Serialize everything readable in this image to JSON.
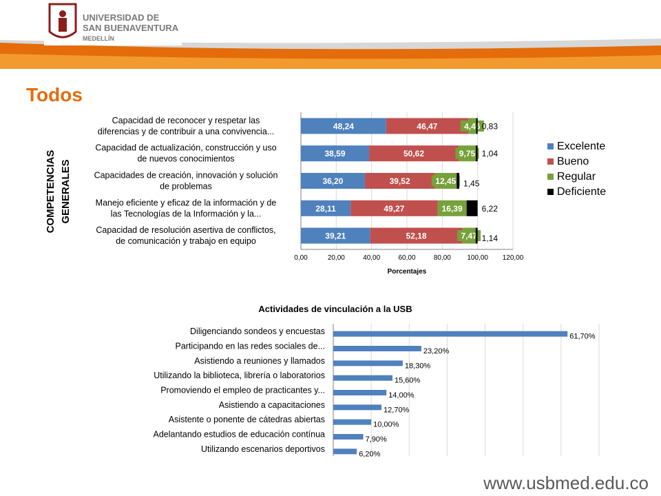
{
  "header": {
    "university_line1": "UNIVERSIDAD DE",
    "university_line2": "SAN BUENAVENTURA",
    "university_line3": "MEDELLÍN"
  },
  "page_title": "Todos",
  "footer": {
    "url": "www.usbmed.edu.co"
  },
  "colors": {
    "excelente": "#4f81bd",
    "bueno": "#c0504d",
    "regular": "#77a13a",
    "deficiente": "#000000",
    "bar2": "#4f81bd",
    "accent": "#e46c0a"
  },
  "chart_data": [
    {
      "type": "bar",
      "orientation": "horizontal",
      "stacked": true,
      "ylabel_lines": [
        "COMPETENCIAS",
        "GENERALES"
      ],
      "xlabel": "Porcentajes",
      "xlim": [
        0,
        120
      ],
      "xticks": [
        "0,00",
        "20,00",
        "40,00",
        "60,00",
        "80,00",
        "100,00",
        "120,00"
      ],
      "grid": true,
      "legend": "right",
      "categories": [
        [
          "Capacidad de reconocer y respetar las",
          "diferencias y de contribuir a una convivencia..."
        ],
        [
          "Capacidad de actualización, construcción y uso",
          "de nuevos    conocimientos"
        ],
        [
          "Capacidades de creación, innovación y solución",
          "de problemas"
        ],
        [
          "Manejo eficiente y eficaz de la información y de",
          "las Tecnologías de la Información y la..."
        ],
        [
          "Capacidad de resolución asertiva de conflictos,",
          "de comunicación y trabajo en equipo"
        ]
      ],
      "series": [
        {
          "name": "Excelente",
          "values": [
            48.24,
            38.59,
            36.2,
            28.11,
            39.21
          ],
          "labels": [
            "48,24",
            "38,59",
            "36,20",
            "28,11",
            "39,21"
          ]
        },
        {
          "name": "Bueno",
          "values": [
            46.47,
            50.62,
            39.52,
            49.27,
            52.18
          ],
          "labels": [
            "46,47",
            "50,62",
            "39,52",
            "49,27",
            "52,18"
          ]
        },
        {
          "name": "Regular",
          "values": [
            4.46,
            9.75,
            12.45,
            16.39,
            7.47
          ],
          "labels": [
            "4,46",
            "9,75",
            "12,45",
            "16,39",
            "7,47"
          ]
        },
        {
          "name": "Deficiente",
          "values": [
            0.83,
            1.04,
            1.45,
            6.22,
            1.14
          ],
          "labels": [
            "0,83",
            "1,04",
            "1,45",
            "6,22",
            "1,14"
          ]
        }
      ]
    },
    {
      "type": "bar",
      "orientation": "horizontal",
      "title": "Actividades de vinculación a la USB",
      "grid": true,
      "xlim": [
        0,
        70
      ],
      "categories": [
        "Diligenciando sondeos y encuestas",
        "Participando en las redes sociales de...",
        "Asistiendo a reuniones y llamados",
        "Utilizando la biblioteca, librería o laboratorios",
        "Promoviendo el empleo de practicantes y...",
        "Asistiendo a capacitaciones",
        "Asistente o ponente de cátedras abiertas",
        "Adelantando estudios de educación contínua",
        "Utilizando escenarios deportivos"
      ],
      "values": [
        61.7,
        23.2,
        18.3,
        15.6,
        14.0,
        12.7,
        10.0,
        7.9,
        6.2
      ],
      "labels": [
        "61,70%",
        "23,20%",
        "18,30%",
        "15,60%",
        "14,00%",
        "12,70%",
        "10,00%",
        "7,90%",
        "6,20%"
      ]
    }
  ]
}
